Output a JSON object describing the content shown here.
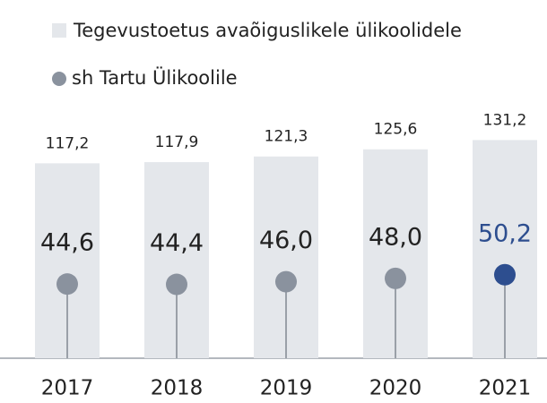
{
  "chart_data": {
    "type": "bar",
    "categories": [
      "2017",
      "2018",
      "2019",
      "2020",
      "2021"
    ],
    "ylim": [
      0,
      140
    ],
    "series": [
      {
        "name": "Tegevustoetus avaõiguslikele ülikoolidele",
        "color": "#e4e7eb",
        "values": [
          117.2,
          117.9,
          121.3,
          125.6,
          131.2
        ],
        "value_labels": [
          "117,2",
          "117,9",
          "121,3",
          "125,6",
          "131,2"
        ]
      },
      {
        "name": "sh Tartu Ülikoolile",
        "color": "#8a929e",
        "colors": [
          "#8a929e",
          "#8a929e",
          "#8a929e",
          "#8a929e",
          "#2d4e8f"
        ],
        "values": [
          44.6,
          44.4,
          46.0,
          48.0,
          50.2
        ],
        "value_labels": [
          "44,6",
          "44,4",
          "46,0",
          "48,0",
          "50,2"
        ]
      }
    ]
  }
}
